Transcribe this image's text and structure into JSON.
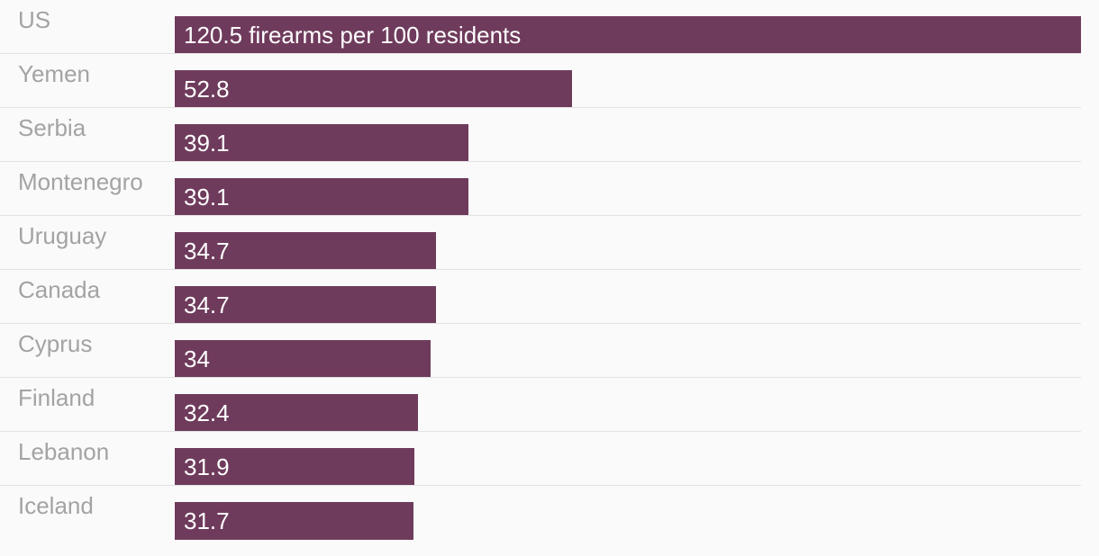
{
  "chart_data": {
    "type": "bar",
    "orientation": "horizontal",
    "title": "",
    "xlabel": "",
    "ylabel": "",
    "categories": [
      "US",
      "Yemen",
      "Serbia",
      "Montenegro",
      "Uruguay",
      "Canada",
      "Cyprus",
      "Finland",
      "Lebanon",
      "Iceland"
    ],
    "values": [
      120.5,
      52.8,
      39.1,
      39.1,
      34.7,
      34.7,
      34,
      32.4,
      31.9,
      31.7
    ],
    "data_labels": [
      "120.5 firearms per 100 residents",
      "52.8",
      "39.1",
      "39.1",
      "34.7",
      "34.7",
      "34",
      "32.4",
      "31.9",
      "31.7"
    ],
    "xlim": [
      0,
      120.5
    ],
    "grid": false,
    "legend": "none",
    "colors": {
      "bar": "#6f3b5c",
      "category_text": "#a3a3a3",
      "bar_text": "#ffffff",
      "divider": "#e2e2e2",
      "background": "#fafafa"
    }
  }
}
